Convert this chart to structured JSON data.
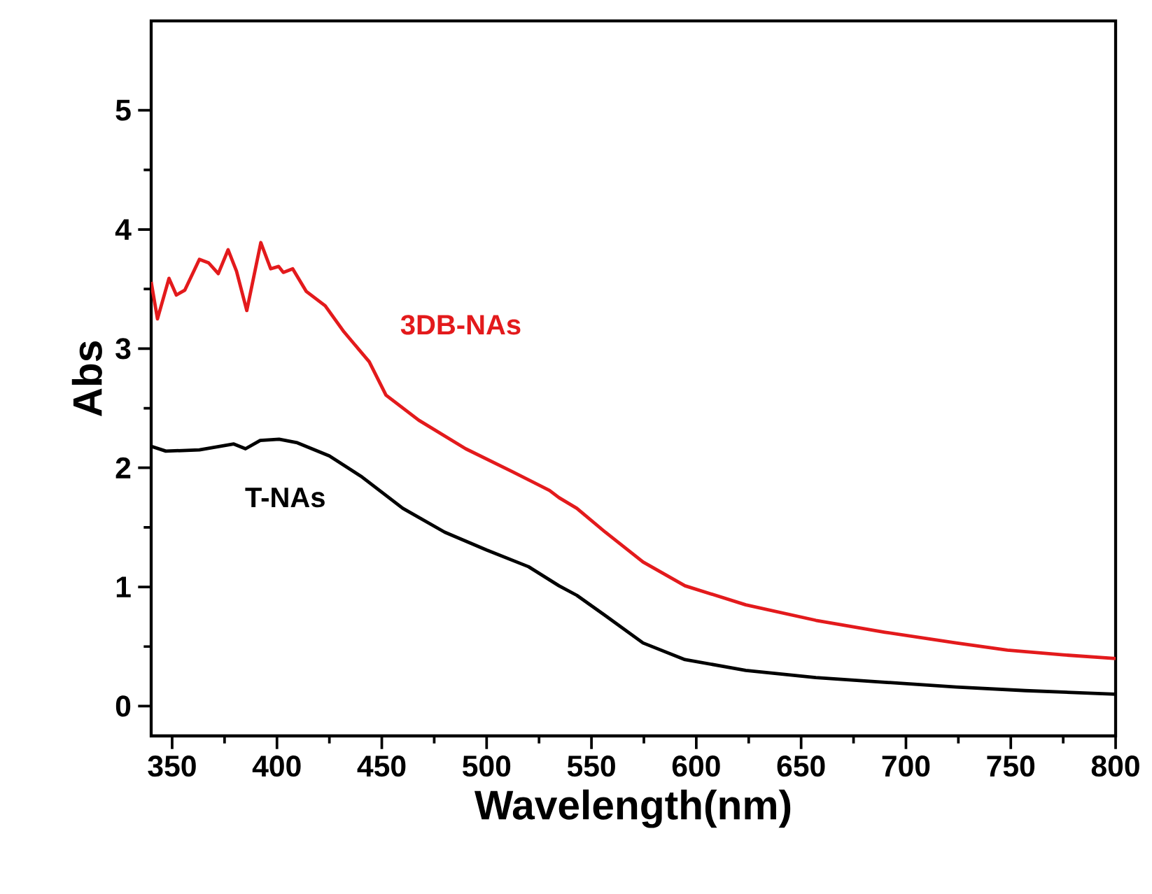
{
  "chart_data": {
    "type": "line",
    "xlabel": "Wavelength(nm)",
    "ylabel": "Abs",
    "xlim": [
      340,
      800
    ],
    "ylim": [
      -0.25,
      5.75
    ],
    "xticks": [
      350,
      400,
      450,
      500,
      550,
      600,
      650,
      700,
      750,
      800
    ],
    "yticks": [
      0,
      1,
      2,
      3,
      4,
      5
    ],
    "grid": false,
    "legend": false,
    "marker": "none",
    "line_style": "solid",
    "series": [
      {
        "name": "3DB-NAs",
        "color": "#e31a1c",
        "x": [
          340,
          343,
          348.5,
          352,
          356,
          363,
          367.4,
          372,
          376.7,
          380.7,
          385.6,
          392.3,
          397,
          400.8,
          403,
          407.5,
          414,
          423,
          432,
          444,
          452,
          467.6,
          490,
          512,
          530,
          534.5,
          543,
          556.6,
          574.6,
          594.6,
          623.6,
          657,
          690,
          724,
          748.4,
          775,
          800
        ],
        "values": [
          3.56,
          3.25,
          3.59,
          3.45,
          3.49,
          3.75,
          3.72,
          3.63,
          3.83,
          3.65,
          3.32,
          3.89,
          3.67,
          3.69,
          3.64,
          3.67,
          3.48,
          3.36,
          3.14,
          2.89,
          2.61,
          2.4,
          2.16,
          1.97,
          1.81,
          1.75,
          1.66,
          1.46,
          1.21,
          1.01,
          0.85,
          0.72,
          0.62,
          0.53,
          0.47,
          0.43,
          0.4
        ]
      },
      {
        "name": "T-NAs",
        "color": "#000000",
        "x": [
          340,
          347,
          363,
          379.4,
          385,
          392,
          401,
          409.7,
          425,
          440,
          460,
          480,
          500,
          520,
          534.5,
          543,
          556.6,
          574.6,
          594.6,
          623.6,
          657,
          690,
          724,
          757,
          800
        ],
        "values": [
          2.18,
          2.14,
          2.15,
          2.2,
          2.16,
          2.23,
          2.24,
          2.21,
          2.1,
          1.93,
          1.66,
          1.46,
          1.31,
          1.17,
          1.01,
          0.93,
          0.76,
          0.53,
          0.39,
          0.3,
          0.24,
          0.2,
          0.16,
          0.13,
          0.1
        ]
      }
    ]
  }
}
